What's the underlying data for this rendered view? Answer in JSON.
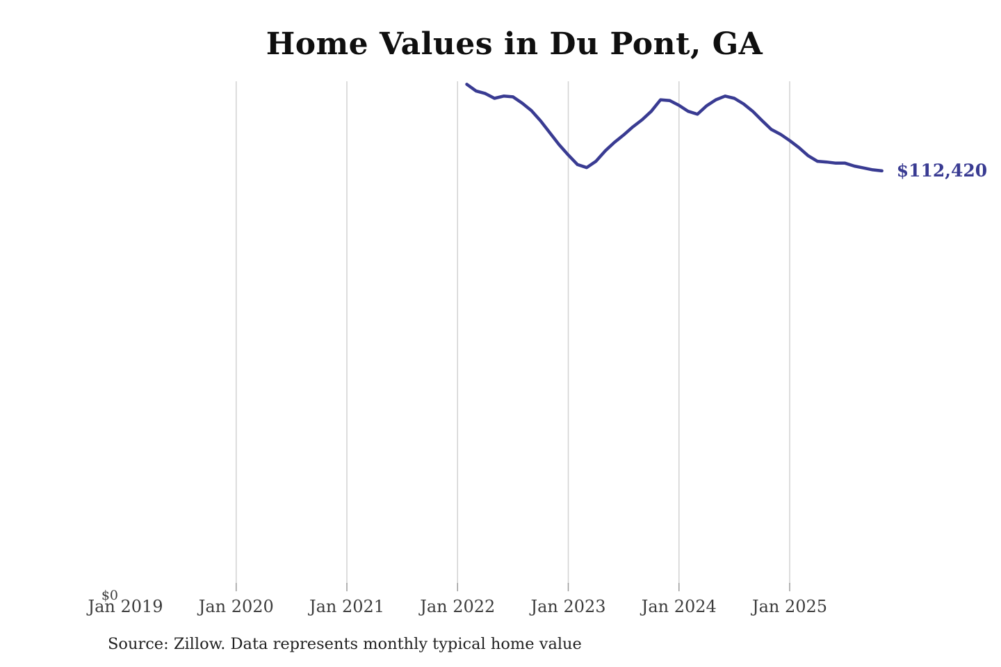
{
  "header": {
    "title": "Home Values in Du Pont, GA"
  },
  "footer": {
    "source_note": "Source: Zillow. Data represents monthly typical home value"
  },
  "chart_data": {
    "type": "line",
    "title": "Home Values in Du Pont, GA",
    "xlabel": "",
    "ylabel": "",
    "ylim": [
      0,
      136600
    ],
    "grid": "vertical-only",
    "legend": "none",
    "end_label": "$112,420",
    "latest_value": 112420,
    "line_color": "#393b92",
    "grid_color": "#d2d2d2",
    "tick_color": "#9b9b9b",
    "label_color": "#3c3c3c",
    "y_axis": {
      "zero_label": "$0",
      "min": 0
    },
    "x_axis": {
      "labels": [
        {
          "label": "Jan 2019",
          "year": 2019,
          "gridline": false
        },
        {
          "label": "Jan 2020",
          "year": 2020,
          "gridline": true
        },
        {
          "label": "Jan 2021",
          "year": 2021,
          "gridline": true
        },
        {
          "label": "Jan 2022",
          "year": 2022,
          "gridline": true
        },
        {
          "label": "Jan 2023",
          "year": 2023,
          "gridline": true
        },
        {
          "label": "Jan 2024",
          "year": 2024,
          "gridline": true
        },
        {
          "label": "Jan 2025",
          "year": 2025,
          "gridline": true
        }
      ]
    },
    "series_name": "Monthly typical home value (USD)",
    "dates": [
      "2022-02",
      "2022-03",
      "2022-04",
      "2022-05",
      "2022-06",
      "2022-07",
      "2022-08",
      "2022-09",
      "2022-10",
      "2022-11",
      "2022-12",
      "2023-01",
      "2023-02",
      "2023-03",
      "2023-04",
      "2023-05",
      "2023-06",
      "2023-07",
      "2023-08",
      "2023-09",
      "2023-10",
      "2023-11",
      "2023-12",
      "2024-01",
      "2024-02",
      "2024-03",
      "2024-04",
      "2024-05",
      "2024-06",
      "2024-07",
      "2024-08",
      "2024-09",
      "2024-10",
      "2024-11",
      "2024-12",
      "2025-01",
      "2025-02",
      "2025-03",
      "2025-04",
      "2025-05",
      "2025-06",
      "2025-07",
      "2025-08",
      "2025-09",
      "2025-10",
      "2025-11"
    ],
    "values": [
      135800,
      134000,
      133300,
      132000,
      132600,
      132400,
      130700,
      128700,
      125900,
      122700,
      119500,
      116700,
      114100,
      113300,
      115000,
      117800,
      120100,
      122100,
      124300,
      126200,
      128500,
      131600,
      131400,
      130100,
      128500,
      127700,
      130000,
      131600,
      132600,
      132000,
      130500,
      128500,
      126000,
      123600,
      122300,
      120600,
      118700,
      116500,
      115000,
      114800,
      114500,
      114500,
      113700,
      113200,
      112700,
      112420
    ]
  }
}
